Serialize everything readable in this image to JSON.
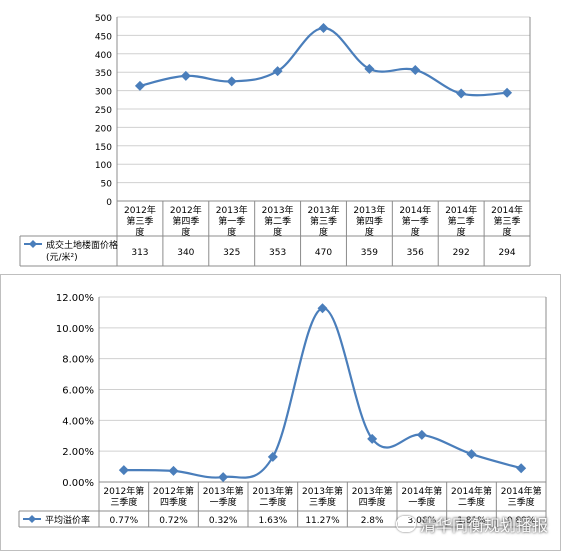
{
  "chart_data": [
    {
      "type": "line",
      "categories": [
        [
          "2012年",
          "第三季",
          "度"
        ],
        [
          "2012年",
          "第四季",
          "度"
        ],
        [
          "2013年",
          "第一季",
          "度"
        ],
        [
          "2013年",
          "第二季",
          "度"
        ],
        [
          "2013年",
          "第三季",
          "度"
        ],
        [
          "2013年",
          "第四季",
          "度"
        ],
        [
          "2014年",
          "第一季",
          "度"
        ],
        [
          "2014年",
          "第二季",
          "度"
        ],
        [
          "2014年",
          "第三季",
          "度"
        ]
      ],
      "series": [
        {
          "name": "成交土地楼面价格(元/米²)",
          "name_lines": [
            "成交土地楼面价格",
            "(元/米²)"
          ],
          "values": [
            313,
            340,
            325,
            353,
            470,
            359,
            356,
            292,
            294
          ],
          "labels": [
            "313",
            "340",
            "325",
            "353",
            "470",
            "359",
            "356",
            "292",
            "294"
          ]
        }
      ],
      "ylim": [
        0,
        500
      ],
      "yticks": [
        0,
        50,
        100,
        150,
        200,
        250,
        300,
        350,
        400,
        450,
        500
      ],
      "ytick_labels": [
        "0",
        "50",
        "100",
        "150",
        "200",
        "250",
        "300",
        "350",
        "400",
        "450",
        "500"
      ],
      "grid": true,
      "legend": "data-table",
      "line_color": "#4a7ebb"
    },
    {
      "type": "line",
      "categories": [
        [
          "2012年第",
          "三季度"
        ],
        [
          "2012年第",
          "四季度"
        ],
        [
          "2013年第",
          "一季度"
        ],
        [
          "2013年第",
          "二季度"
        ],
        [
          "2013年第",
          "三季度"
        ],
        [
          "2013年第",
          "四季度"
        ],
        [
          "2014年第",
          "一季度"
        ],
        [
          "2014年第",
          "二季度"
        ],
        [
          "2014年第",
          "三季度"
        ]
      ],
      "series": [
        {
          "name": "平均溢价率",
          "name_lines": [
            "平均溢价率"
          ],
          "values": [
            0.77,
            0.72,
            0.32,
            1.63,
            11.27,
            2.8,
            3.06,
            1.81,
            0.89
          ],
          "labels": [
            "0.77%",
            "0.72%",
            "0.32%",
            "1.63%",
            "11.27%",
            "2.8%",
            "3.06%",
            "1.81%",
            "0.89%"
          ]
        }
      ],
      "ylim": [
        0,
        12
      ],
      "yticks": [
        0,
        2,
        4,
        6,
        8,
        10,
        12
      ],
      "ytick_labels": [
        "0.00%",
        "2.00%",
        "4.00%",
        "6.00%",
        "8.00%",
        "10.00%",
        "12.00%"
      ],
      "grid": true,
      "legend": "data-table",
      "line_color": "#4a7ebb"
    }
  ],
  "watermark": {
    "text": "清华同衡规划播报",
    "icon": "wechat-icon"
  }
}
